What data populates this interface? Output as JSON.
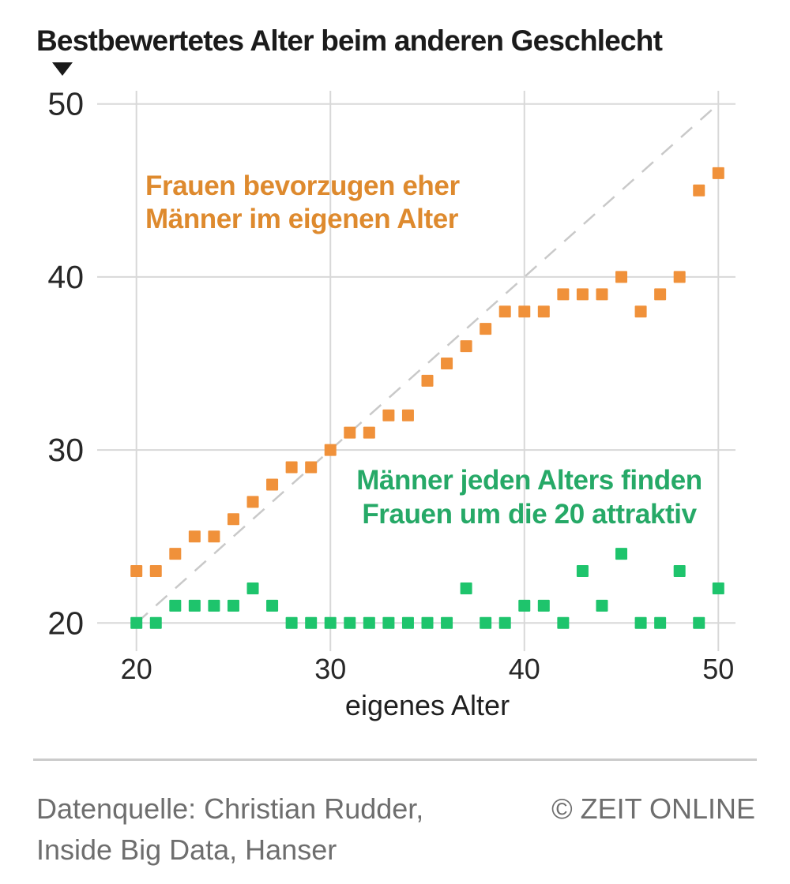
{
  "header": {
    "title": "Bestbewertetes Alter beim anderen Geschlecht"
  },
  "icons": {
    "axis_pointer": "triangle-down"
  },
  "chart_data": {
    "type": "scatter",
    "title": "Bestbewertetes Alter beim anderen Geschlecht",
    "xlabel": "eigenes Alter",
    "ylabel": "Bestbewertetes Alter beim anderen Geschlecht",
    "xlim": [
      20,
      50
    ],
    "ylim": [
      20,
      50
    ],
    "x_ticks": [
      20,
      30,
      40,
      50
    ],
    "y_ticks": [
      50,
      40,
      30,
      20
    ],
    "grid": true,
    "marker": "square",
    "identity_line": {
      "style": "dashed",
      "from": [
        20,
        20
      ],
      "to": [
        50,
        50
      ]
    },
    "x": [
      20,
      21,
      22,
      23,
      24,
      25,
      26,
      27,
      28,
      29,
      30,
      31,
      32,
      33,
      34,
      35,
      36,
      37,
      38,
      39,
      40,
      41,
      42,
      43,
      44,
      45,
      46,
      47,
      48,
      49,
      50
    ],
    "series": [
      {
        "id": "frauen",
        "label": "Frauen bevorzugen eher Männer im eigenen Alter",
        "color": "#f0913a",
        "values": [
          23,
          23,
          24,
          25,
          25,
          26,
          27,
          28,
          29,
          29,
          30,
          31,
          31,
          32,
          32,
          34,
          35,
          36,
          37,
          38,
          38,
          38,
          39,
          39,
          39,
          40,
          38,
          39,
          40,
          45,
          46
        ]
      },
      {
        "id": "maenner",
        "label": "Männer jeden Alters finden Frauen um die 20 attraktiv",
        "color": "#1ec46c",
        "values": [
          20,
          20,
          21,
          21,
          21,
          21,
          22,
          21,
          20,
          20,
          20,
          20,
          20,
          20,
          20,
          20,
          20,
          22,
          20,
          20,
          21,
          21,
          20,
          23,
          21,
          24,
          20,
          20,
          23,
          20,
          22
        ]
      }
    ],
    "annotations": [
      {
        "series": "frauen",
        "color": "#de8a2e",
        "lines": [
          "Frauen bevorzugen eher",
          "Männer im eigenen Alter"
        ]
      },
      {
        "series": "maenner",
        "color": "#26a967",
        "lines": [
          "Männer jeden Alters finden",
          "Frauen um die 20 attraktiv"
        ]
      }
    ]
  },
  "footer": {
    "source_line1": "Datenquelle: Christian Rudder,",
    "source_line2": "Inside Big Data, Hanser",
    "copyright": "© ZEIT ONLINE"
  }
}
